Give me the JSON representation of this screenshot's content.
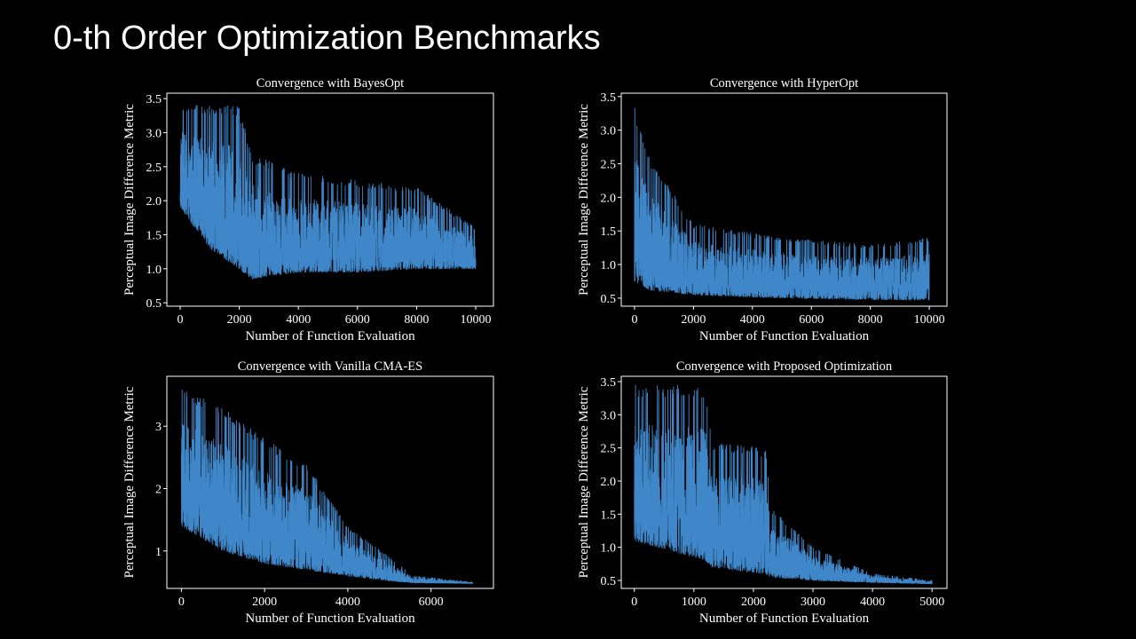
{
  "slide": {
    "title": "0-th Order Optimization Benchmarks"
  },
  "colors": {
    "background": "#000000",
    "line": "#3f87c9",
    "text": "#ffffff",
    "axes": "#ffffff"
  },
  "chart_data": [
    {
      "type": "line",
      "title": "Convergence with BayesOpt",
      "xlabel": "Number of Function Evaluation",
      "ylabel": "Perceptual Image Difference Metric",
      "xlim": [
        -450,
        10600
      ],
      "ylim": [
        0.45,
        3.58
      ],
      "xticks": [
        0,
        2000,
        4000,
        6000,
        8000,
        10000
      ],
      "xtick_labels": [
        "0",
        "2000",
        "4000",
        "6000",
        "8000",
        "10000"
      ],
      "yticks": [
        0.5,
        1.0,
        1.5,
        2.0,
        2.5,
        3.0,
        3.5
      ],
      "ytick_labels": [
        "0.5",
        "1.0",
        "1.5",
        "2.0",
        "2.5",
        "3.0",
        "3.5"
      ],
      "series": [
        {
          "x_end": 10000,
          "envelope": [
            {
              "x": 0,
              "low": 1.9,
              "high": 3.4
            },
            {
              "x": 1000,
              "low": 1.3,
              "high": 3.4
            },
            {
              "x": 2000,
              "low": 1.0,
              "high": 3.4
            },
            {
              "x": 2400,
              "low": 0.85,
              "high": 2.7
            },
            {
              "x": 4000,
              "low": 0.95,
              "high": 2.4
            },
            {
              "x": 6000,
              "low": 0.95,
              "high": 2.3
            },
            {
              "x": 8000,
              "low": 1.0,
              "high": 2.2
            },
            {
              "x": 10000,
              "low": 1.0,
              "high": 1.6
            }
          ]
        }
      ]
    },
    {
      "type": "line",
      "title": "Convergence with HyperOpt",
      "xlabel": "Number of Function Evaluation",
      "ylabel": "Perceptual Image Difference Metric",
      "xlim": [
        -450,
        10600
      ],
      "ylim": [
        0.38,
        3.55
      ],
      "xticks": [
        0,
        2000,
        4000,
        6000,
        8000,
        10000
      ],
      "xtick_labels": [
        "0",
        "2000",
        "4000",
        "6000",
        "8000",
        "10000"
      ],
      "yticks": [
        0.5,
        1.0,
        1.5,
        2.0,
        2.5,
        3.0,
        3.5
      ],
      "ytick_labels": [
        "0.5",
        "1.0",
        "1.5",
        "2.0",
        "2.5",
        "3.0",
        "3.5"
      ],
      "series": [
        {
          "x_end": 10000,
          "envelope": [
            {
              "x": 0,
              "low": 0.75,
              "high": 3.35
            },
            {
              "x": 500,
              "low": 0.62,
              "high": 2.6
            },
            {
              "x": 2000,
              "low": 0.55,
              "high": 1.6
            },
            {
              "x": 5000,
              "low": 0.5,
              "high": 1.4
            },
            {
              "x": 8000,
              "low": 0.48,
              "high": 1.3
            },
            {
              "x": 10000,
              "low": 0.47,
              "high": 1.4
            }
          ]
        }
      ]
    },
    {
      "type": "line",
      "title": "Convergence with Vanilla CMA-ES",
      "xlabel": "Number of Function Evaluation",
      "ylabel": "Perceptual Image Difference Metric",
      "xlim": [
        -350,
        7500
      ],
      "ylim": [
        0.4,
        3.8
      ],
      "xticks": [
        0,
        2000,
        4000,
        6000
      ],
      "xtick_labels": [
        "0",
        "2000",
        "4000",
        "6000"
      ],
      "yticks": [
        1,
        2,
        3
      ],
      "ytick_labels": [
        "1",
        "2",
        "3"
      ],
      "series": [
        {
          "x_end": 7000,
          "envelope": [
            {
              "x": 0,
              "low": 1.4,
              "high": 3.6
            },
            {
              "x": 1000,
              "low": 1.0,
              "high": 3.3
            },
            {
              "x": 2000,
              "low": 0.8,
              "high": 2.8
            },
            {
              "x": 3000,
              "low": 0.7,
              "high": 2.4
            },
            {
              "x": 4000,
              "low": 0.6,
              "high": 1.4
            },
            {
              "x": 5000,
              "low": 0.52,
              "high": 0.9
            },
            {
              "x": 5600,
              "low": 0.49,
              "high": 0.6
            },
            {
              "x": 7000,
              "low": 0.48,
              "high": 0.5
            }
          ]
        }
      ]
    },
    {
      "type": "line",
      "title": "Convergence with Proposed Optimization",
      "xlabel": "Number of Function Evaluation",
      "ylabel": "Perceptual Image Difference Metric",
      "xlim": [
        -220,
        5250
      ],
      "ylim": [
        0.38,
        3.58
      ],
      "xticks": [
        0,
        1000,
        2000,
        3000,
        4000,
        5000
      ],
      "xtick_labels": [
        "0",
        "1000",
        "2000",
        "3000",
        "4000",
        "5000"
      ],
      "yticks": [
        0.5,
        1.0,
        1.5,
        2.0,
        2.5,
        3.0,
        3.5
      ],
      "ytick_labels": [
        "0.5",
        "1.0",
        "1.5",
        "2.0",
        "2.5",
        "3.0",
        "3.5"
      ],
      "series": [
        {
          "x_end": 5000,
          "envelope": [
            {
              "x": 0,
              "low": 1.1,
              "high": 3.45
            },
            {
              "x": 1200,
              "low": 0.8,
              "high": 3.45
            },
            {
              "x": 1300,
              "low": 0.7,
              "high": 2.6
            },
            {
              "x": 2200,
              "low": 0.6,
              "high": 2.5
            },
            {
              "x": 2300,
              "low": 0.55,
              "high": 1.6
            },
            {
              "x": 3000,
              "low": 0.5,
              "high": 1.0
            },
            {
              "x": 4000,
              "low": 0.47,
              "high": 0.6
            },
            {
              "x": 5000,
              "low": 0.45,
              "high": 0.5
            }
          ]
        }
      ]
    }
  ]
}
